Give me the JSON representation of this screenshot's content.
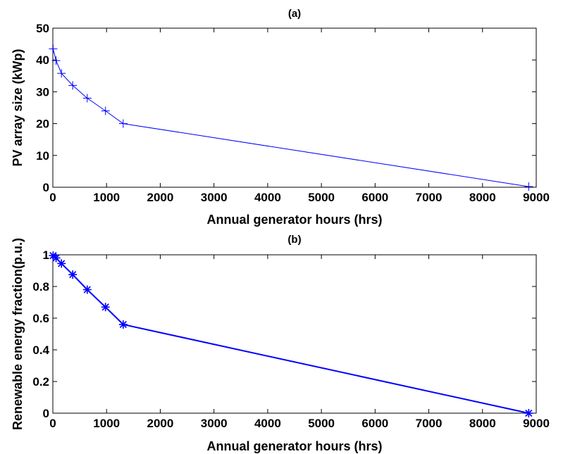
{
  "chart_data": [
    {
      "type": "line",
      "title": "(a)",
      "xlabel": "Annual generator hours (hrs)",
      "ylabel": "PV array size (kWp)",
      "xlim": [
        0,
        9000
      ],
      "ylim": [
        0,
        50
      ],
      "xticks": [
        0,
        1000,
        2000,
        3000,
        4000,
        5000,
        6000,
        7000,
        8000,
        9000
      ],
      "yticks": [
        0,
        10,
        20,
        30,
        40,
        50
      ],
      "grid": false,
      "marker": "plus",
      "color": "#0000ff",
      "x": [
        5,
        60,
        160,
        370,
        640,
        980,
        1310,
        8860
      ],
      "y": [
        43.5,
        39.8,
        35.8,
        32,
        28,
        24,
        20,
        0.2
      ]
    },
    {
      "type": "line",
      "title": "(b)",
      "xlabel": "Annual generator hours (hrs)",
      "ylabel": "Renewable energy fraction(p.u.)",
      "xlim": [
        0,
        9000
      ],
      "ylim": [
        0,
        1
      ],
      "xticks": [
        0,
        1000,
        2000,
        3000,
        4000,
        5000,
        6000,
        7000,
        8000,
        9000
      ],
      "yticks": [
        0,
        0.2,
        0.4,
        0.6,
        0.8,
        1
      ],
      "grid": false,
      "marker": "asterisk",
      "color": "#0000ff",
      "x": [
        5,
        60,
        160,
        370,
        640,
        980,
        1310,
        8860
      ],
      "y": [
        0.995,
        0.98,
        0.945,
        0.875,
        0.78,
        0.67,
        0.56,
        0
      ]
    }
  ]
}
